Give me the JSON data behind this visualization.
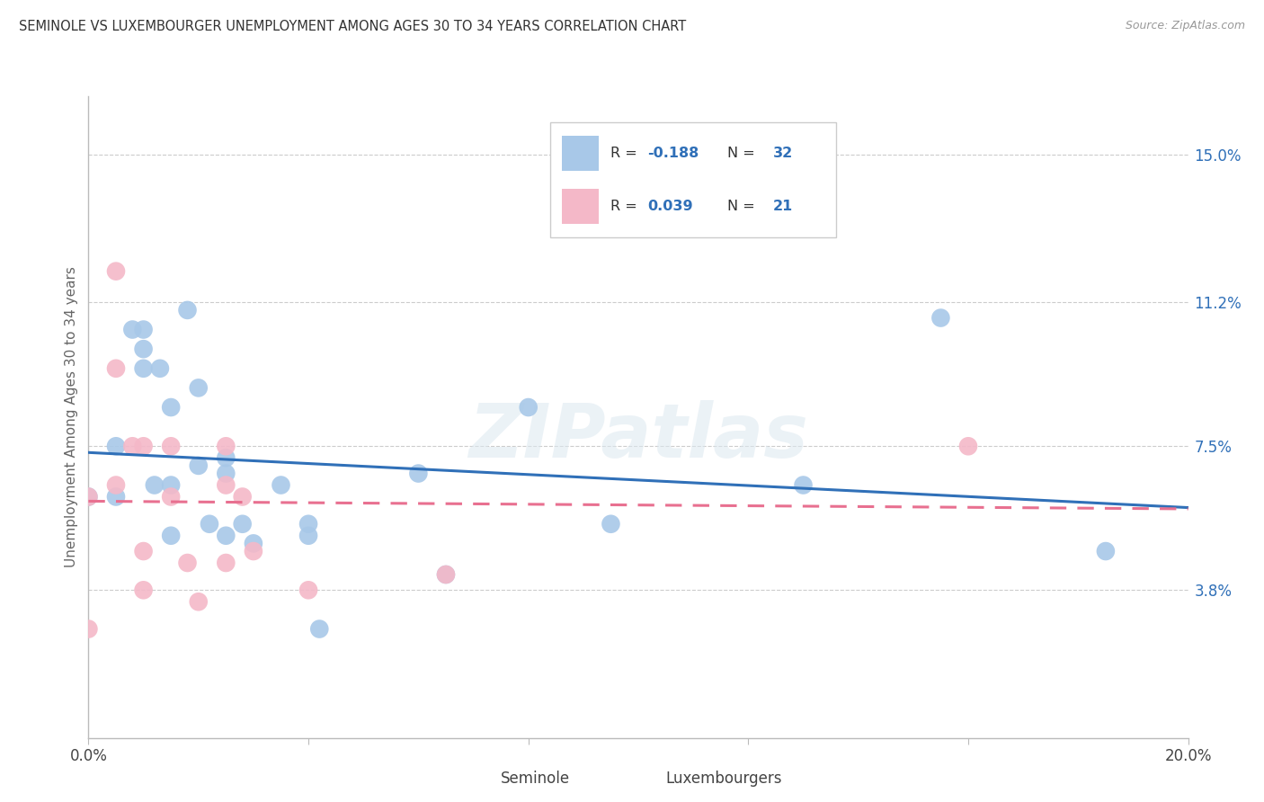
{
  "title": "SEMINOLE VS LUXEMBOURGER UNEMPLOYMENT AMONG AGES 30 TO 34 YEARS CORRELATION CHART",
  "source": "Source: ZipAtlas.com",
  "ylabel": "Unemployment Among Ages 30 to 34 years",
  "xlim": [
    0.0,
    0.2
  ],
  "ylim": [
    0.0,
    0.165
  ],
  "xticks": [
    0.0,
    0.04,
    0.08,
    0.12,
    0.16,
    0.2
  ],
  "xticklabels": [
    "0.0%",
    "",
    "",
    "",
    "",
    "20.0%"
  ],
  "yticks_right": [
    0.038,
    0.075,
    0.112,
    0.15
  ],
  "yticklabels_right": [
    "3.8%",
    "7.5%",
    "11.2%",
    "15.0%"
  ],
  "seminole_R": -0.188,
  "seminole_N": 32,
  "luxembourger_R": 0.039,
  "luxembourger_N": 21,
  "seminole_color": "#A8C8E8",
  "luxembourger_color": "#F4B8C8",
  "seminole_line_color": "#3070B8",
  "luxembourger_line_color": "#E87090",
  "watermark": "ZIPatlas",
  "seminole_x": [
    0.0,
    0.005,
    0.005,
    0.008,
    0.01,
    0.01,
    0.01,
    0.012,
    0.013,
    0.015,
    0.015,
    0.015,
    0.018,
    0.02,
    0.02,
    0.022,
    0.025,
    0.025,
    0.025,
    0.028,
    0.03,
    0.035,
    0.04,
    0.04,
    0.042,
    0.06,
    0.065,
    0.08,
    0.095,
    0.13,
    0.155,
    0.185
  ],
  "seminole_y": [
    0.062,
    0.075,
    0.062,
    0.105,
    0.105,
    0.1,
    0.095,
    0.065,
    0.095,
    0.085,
    0.065,
    0.052,
    0.11,
    0.09,
    0.07,
    0.055,
    0.072,
    0.068,
    0.052,
    0.055,
    0.05,
    0.065,
    0.055,
    0.052,
    0.028,
    0.068,
    0.042,
    0.085,
    0.055,
    0.065,
    0.108,
    0.048
  ],
  "luxembourger_x": [
    0.0,
    0.0,
    0.005,
    0.005,
    0.005,
    0.008,
    0.01,
    0.01,
    0.01,
    0.015,
    0.015,
    0.018,
    0.02,
    0.025,
    0.025,
    0.025,
    0.028,
    0.03,
    0.04,
    0.065,
    0.16
  ],
  "luxembourger_y": [
    0.062,
    0.028,
    0.12,
    0.095,
    0.065,
    0.075,
    0.075,
    0.048,
    0.038,
    0.075,
    0.062,
    0.045,
    0.035,
    0.075,
    0.065,
    0.045,
    0.062,
    0.048,
    0.038,
    0.042,
    0.075
  ],
  "background_color": "#ffffff",
  "grid_color": "#cccccc",
  "legend_label_color": "#3070B8",
  "legend_text_dark": "#333333"
}
